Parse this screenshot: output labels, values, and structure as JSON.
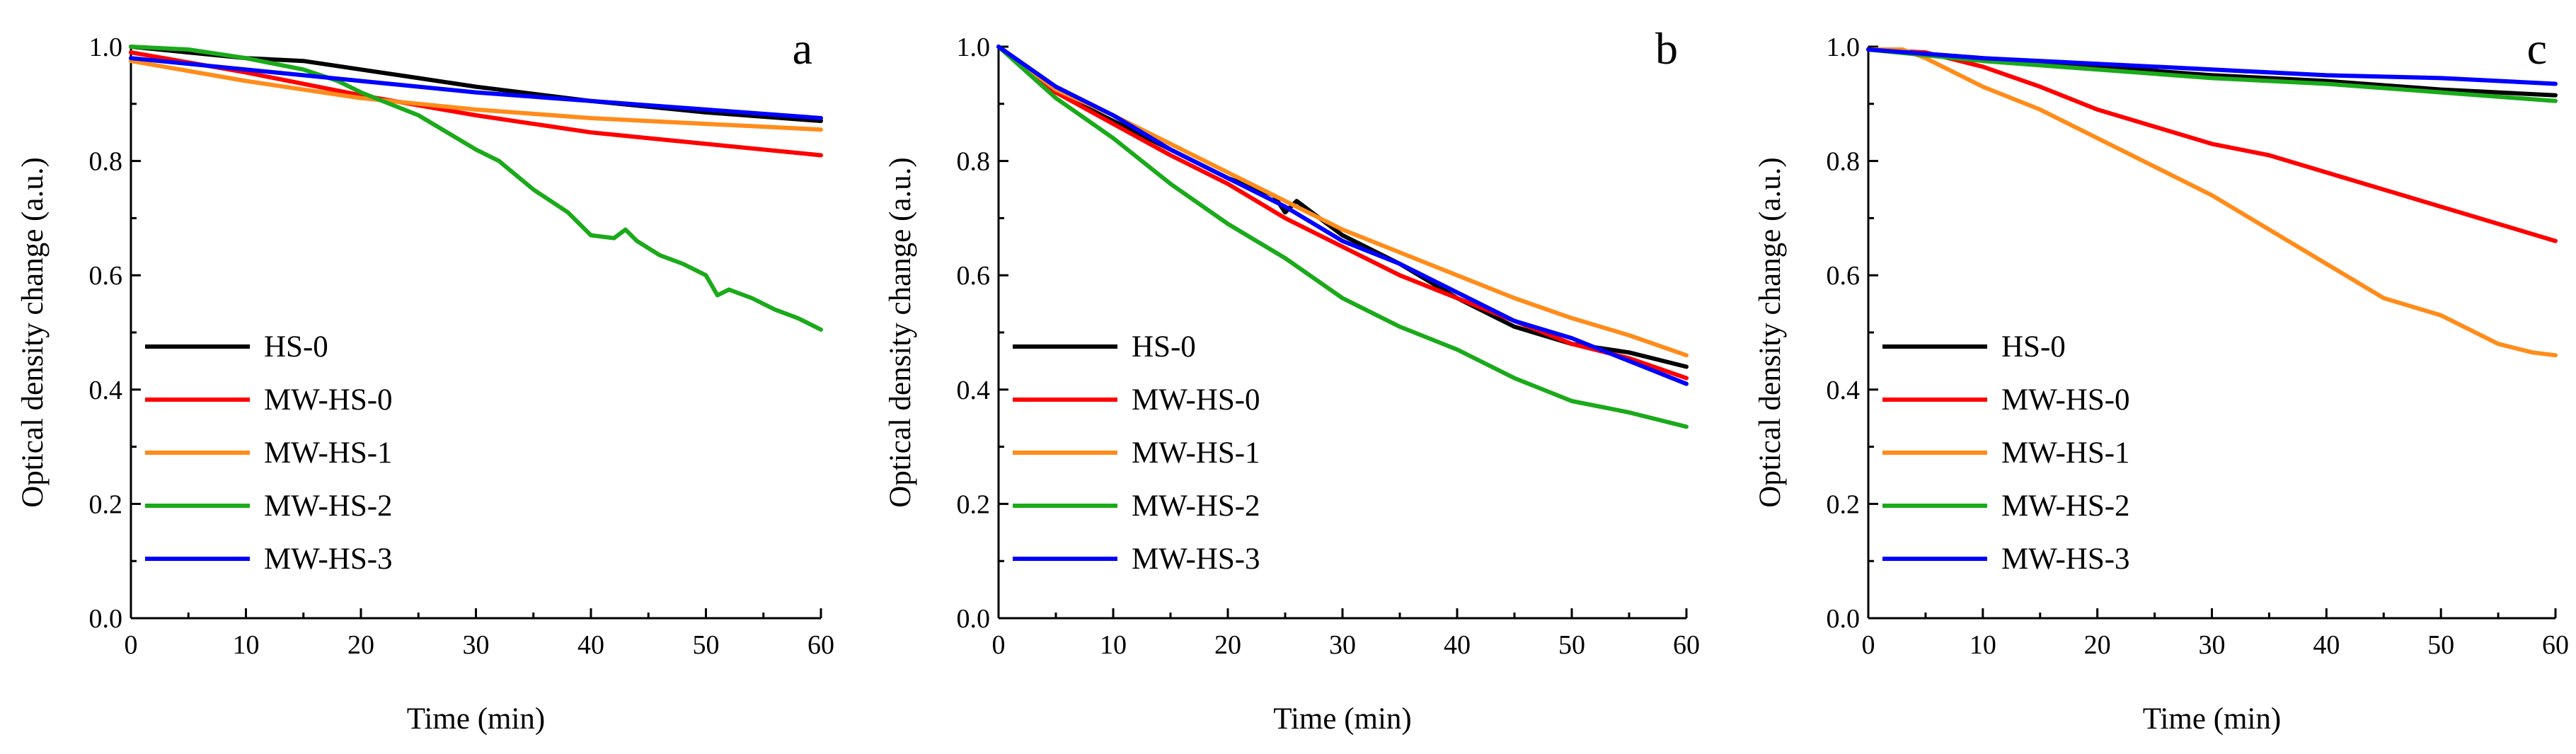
{
  "colors": {
    "HS-0": "#000000",
    "MW-HS-0": "#ff0000",
    "MW-HS-1": "#ff8c1a",
    "MW-HS-2": "#1aaa1a",
    "MW-HS-3": "#0000ff"
  },
  "chart_data": [
    {
      "type": "line",
      "panel": "a",
      "xlabel": "Time (min)",
      "ylabel": "Optical density change (a.u.)",
      "xlim": [
        0,
        60
      ],
      "ylim": [
        0,
        1.0
      ],
      "xticks": [
        0,
        10,
        20,
        30,
        40,
        50,
        60
      ],
      "yticks": [
        0.0,
        0.2,
        0.4,
        0.6,
        0.8,
        1.0
      ],
      "legend_position": "bottom-left",
      "series": [
        {
          "name": "HS-0",
          "x": [
            0,
            5,
            10,
            15,
            20,
            25,
            30,
            40,
            50,
            60
          ],
          "y": [
            1.0,
            0.99,
            0.98,
            0.975,
            0.96,
            0.945,
            0.93,
            0.905,
            0.885,
            0.87
          ]
        },
        {
          "name": "MW-HS-0",
          "x": [
            0,
            10,
            20,
            30,
            40,
            50,
            60
          ],
          "y": [
            0.99,
            0.955,
            0.915,
            0.88,
            0.85,
            0.83,
            0.81
          ]
        },
        {
          "name": "MW-HS-1",
          "x": [
            0,
            10,
            20,
            30,
            40,
            50,
            60
          ],
          "y": [
            0.975,
            0.94,
            0.91,
            0.89,
            0.875,
            0.865,
            0.855
          ]
        },
        {
          "name": "MW-HS-2",
          "x": [
            0,
            5,
            10,
            15,
            18,
            20,
            25,
            30,
            32,
            35,
            38,
            40,
            42,
            43,
            44,
            46,
            48,
            50,
            51,
            52,
            54,
            56,
            58,
            60
          ],
          "y": [
            1.0,
            0.995,
            0.98,
            0.96,
            0.94,
            0.92,
            0.88,
            0.82,
            0.8,
            0.75,
            0.71,
            0.67,
            0.665,
            0.68,
            0.66,
            0.635,
            0.62,
            0.6,
            0.565,
            0.575,
            0.56,
            0.54,
            0.525,
            0.505
          ]
        },
        {
          "name": "MW-HS-3",
          "x": [
            0,
            10,
            20,
            30,
            40,
            50,
            60
          ],
          "y": [
            0.98,
            0.96,
            0.94,
            0.92,
            0.905,
            0.89,
            0.875
          ]
        }
      ]
    },
    {
      "type": "line",
      "panel": "b",
      "xlabel": "Time (min)",
      "ylabel": "Optical density change (a.u.)",
      "xlim": [
        0,
        60
      ],
      "ylim": [
        0,
        1.0
      ],
      "xticks": [
        0,
        10,
        20,
        30,
        40,
        50,
        60
      ],
      "yticks": [
        0.0,
        0.2,
        0.4,
        0.6,
        0.8,
        1.0
      ],
      "legend_position": "bottom-left",
      "series": [
        {
          "name": "HS-0",
          "x": [
            0,
            5,
            10,
            15,
            20,
            24,
            25,
            26,
            30,
            35,
            40,
            45,
            50,
            55,
            60
          ],
          "y": [
            1.0,
            0.92,
            0.87,
            0.82,
            0.77,
            0.74,
            0.71,
            0.73,
            0.67,
            0.62,
            0.56,
            0.51,
            0.48,
            0.465,
            0.44
          ]
        },
        {
          "name": "MW-HS-0",
          "x": [
            0,
            5,
            10,
            15,
            20,
            25,
            30,
            35,
            40,
            45,
            50,
            55,
            60
          ],
          "y": [
            1.0,
            0.92,
            0.865,
            0.81,
            0.76,
            0.7,
            0.65,
            0.6,
            0.56,
            0.52,
            0.48,
            0.455,
            0.42
          ]
        },
        {
          "name": "MW-HS-1",
          "x": [
            0,
            5,
            10,
            15,
            20,
            25,
            30,
            35,
            40,
            45,
            50,
            55,
            60
          ],
          "y": [
            1.0,
            0.925,
            0.88,
            0.83,
            0.78,
            0.73,
            0.68,
            0.64,
            0.6,
            0.56,
            0.525,
            0.495,
            0.46
          ]
        },
        {
          "name": "MW-HS-2",
          "x": [
            0,
            5,
            10,
            15,
            20,
            25,
            30,
            35,
            40,
            45,
            50,
            55,
            60
          ],
          "y": [
            1.0,
            0.91,
            0.84,
            0.76,
            0.69,
            0.63,
            0.56,
            0.51,
            0.47,
            0.42,
            0.38,
            0.36,
            0.335
          ]
        },
        {
          "name": "MW-HS-3",
          "x": [
            0,
            5,
            10,
            15,
            20,
            25,
            30,
            35,
            40,
            45,
            50,
            55,
            60
          ],
          "y": [
            1.0,
            0.93,
            0.88,
            0.82,
            0.77,
            0.72,
            0.66,
            0.62,
            0.57,
            0.52,
            0.49,
            0.45,
            0.41
          ]
        }
      ]
    },
    {
      "type": "line",
      "panel": "c",
      "xlabel": "Time (min)",
      "ylabel": "Optical density change (a.u.)",
      "xlim": [
        0,
        60
      ],
      "ylim": [
        0,
        1.0
      ],
      "xticks": [
        0,
        10,
        20,
        30,
        40,
        50,
        60
      ],
      "yticks": [
        0.0,
        0.2,
        0.4,
        0.6,
        0.8,
        1.0
      ],
      "legend_position": "bottom-left",
      "series": [
        {
          "name": "HS-0",
          "x": [
            0,
            10,
            20,
            30,
            40,
            50,
            60
          ],
          "y": [
            0.995,
            0.98,
            0.965,
            0.95,
            0.94,
            0.925,
            0.915
          ]
        },
        {
          "name": "MW-HS-0",
          "x": [
            0,
            5,
            10,
            15,
            20,
            25,
            30,
            35,
            40,
            45,
            50,
            55,
            60
          ],
          "y": [
            0.995,
            0.99,
            0.965,
            0.93,
            0.89,
            0.86,
            0.83,
            0.81,
            0.78,
            0.75,
            0.72,
            0.69,
            0.66
          ]
        },
        {
          "name": "MW-HS-1",
          "x": [
            0,
            3,
            5,
            10,
            15,
            20,
            25,
            30,
            35,
            40,
            45,
            50,
            55,
            58,
            60
          ],
          "y": [
            0.995,
            0.995,
            0.98,
            0.93,
            0.89,
            0.84,
            0.79,
            0.74,
            0.68,
            0.62,
            0.56,
            0.53,
            0.48,
            0.465,
            0.46
          ]
        },
        {
          "name": "MW-HS-2",
          "x": [
            0,
            10,
            20,
            30,
            40,
            50,
            60
          ],
          "y": [
            0.995,
            0.975,
            0.96,
            0.945,
            0.935,
            0.92,
            0.905
          ]
        },
        {
          "name": "MW-HS-3",
          "x": [
            0,
            10,
            20,
            30,
            40,
            50,
            60
          ],
          "y": [
            0.995,
            0.98,
            0.97,
            0.96,
            0.95,
            0.945,
            0.935
          ]
        }
      ]
    }
  ]
}
